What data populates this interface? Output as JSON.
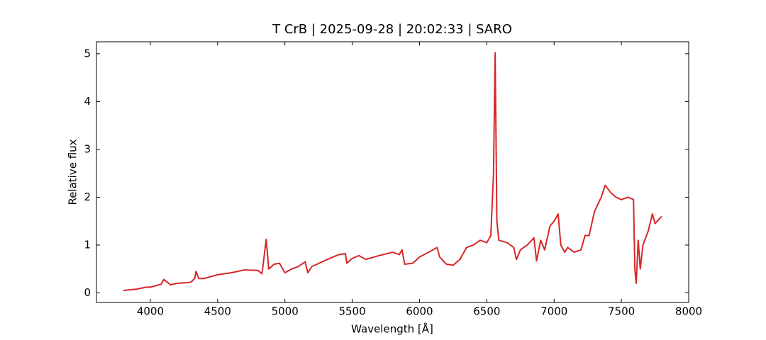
{
  "chart_data": {
    "type": "line",
    "title": "T CrB | 2025-09-28 | 20:02:33 | SARO",
    "xlabel": "Wavelength [Å]",
    "ylabel": "Relative flux",
    "x": [
      3800,
      3900,
      3970,
      4000,
      4080,
      4100,
      4150,
      4200,
      4300,
      4330,
      4340,
      4360,
      4400,
      4500,
      4600,
      4700,
      4800,
      4830,
      4861,
      4880,
      4920,
      4960,
      5000,
      5050,
      5100,
      5150,
      5170,
      5200,
      5300,
      5400,
      5450,
      5460,
      5500,
      5550,
      5600,
      5700,
      5800,
      5850,
      5870,
      5890,
      5950,
      6000,
      6100,
      6130,
      6150,
      6200,
      6250,
      6300,
      6350,
      6400,
      6450,
      6500,
      6530,
      6550,
      6562,
      6575,
      6590,
      6650,
      6700,
      6720,
      6750,
      6800,
      6850,
      6870,
      6900,
      6930,
      6970,
      7000,
      7030,
      7050,
      7080,
      7100,
      7150,
      7200,
      7230,
      7260,
      7300,
      7350,
      7380,
      7420,
      7460,
      7500,
      7550,
      7590,
      7600,
      7610,
      7625,
      7640,
      7660,
      7700,
      7730,
      7750,
      7800
    ],
    "series": [
      {
        "name": "T CrB",
        "color": "#d62728",
        "values": [
          0.05,
          0.08,
          0.12,
          0.12,
          0.18,
          0.28,
          0.17,
          0.2,
          0.22,
          0.3,
          0.45,
          0.3,
          0.3,
          0.38,
          0.42,
          0.48,
          0.47,
          0.4,
          1.12,
          0.5,
          0.6,
          0.62,
          0.42,
          0.5,
          0.55,
          0.65,
          0.42,
          0.55,
          0.68,
          0.8,
          0.82,
          0.62,
          0.72,
          0.78,
          0.7,
          0.78,
          0.85,
          0.8,
          0.9,
          0.6,
          0.62,
          0.75,
          0.9,
          0.95,
          0.75,
          0.6,
          0.58,
          0.7,
          0.95,
          1.0,
          1.1,
          1.05,
          1.2,
          2.5,
          5.02,
          1.5,
          1.1,
          1.05,
          0.95,
          0.7,
          0.9,
          1.0,
          1.15,
          0.67,
          1.1,
          0.9,
          1.4,
          1.5,
          1.65,
          1.0,
          0.85,
          0.95,
          0.85,
          0.9,
          1.2,
          1.2,
          1.7,
          2.0,
          2.25,
          2.1,
          2.0,
          1.95,
          2.0,
          1.95,
          0.5,
          0.2,
          1.1,
          0.5,
          1.0,
          1.3,
          1.65,
          1.45,
          1.6
        ]
      }
    ],
    "xlim": [
      3600,
      8000
    ],
    "xticks": [
      4000,
      4500,
      5000,
      5500,
      6000,
      6500,
      7000,
      7500,
      8000
    ],
    "ylim": [
      -0.2,
      5.25
    ],
    "yticks": [
      0,
      1,
      2,
      3,
      4,
      5
    ],
    "grid": false
  }
}
